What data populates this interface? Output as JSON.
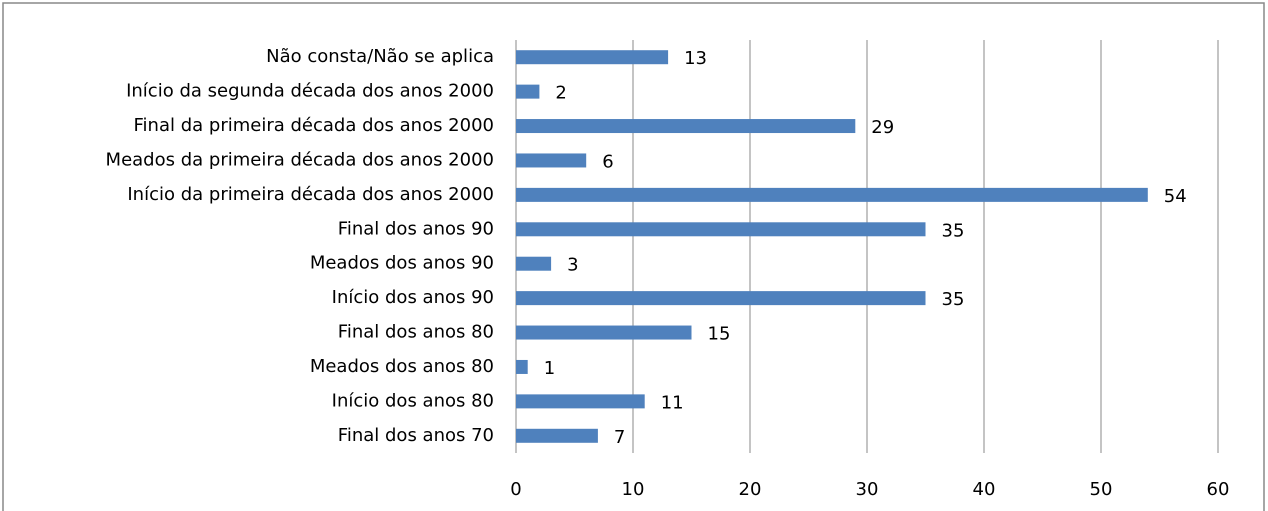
{
  "chart_data": {
    "type": "bar",
    "orientation": "horizontal",
    "categories": [
      "Não consta/Não se aplica",
      "Início da segunda década dos anos 2000",
      "Final da primeira década dos anos 2000",
      "Meados da primeira década dos anos 2000",
      "Início da primeira década dos anos 2000",
      "Final dos anos 90",
      "Meados dos anos 90",
      "Início dos anos 90",
      "Final dos anos 80",
      "Meados dos anos 80",
      "Início dos anos 80",
      "Final dos anos 70"
    ],
    "values": [
      13,
      2,
      29,
      6,
      54,
      35,
      3,
      35,
      15,
      1,
      11,
      7
    ],
    "color": "#4f81bd",
    "xlim": [
      0,
      60
    ],
    "xticks": [
      0,
      10,
      20,
      30,
      40,
      50,
      60
    ],
    "grid": true
  }
}
